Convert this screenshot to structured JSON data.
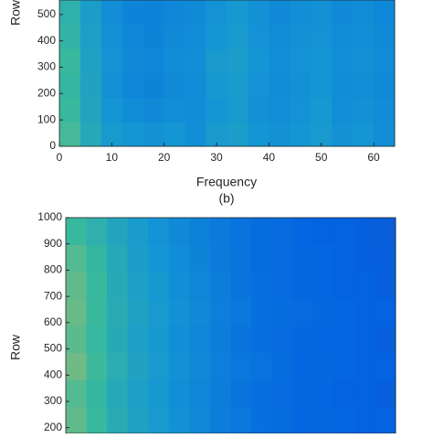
{
  "chart_data": [
    {
      "type": "heatmap",
      "ylabel": "Row",
      "xlabel": "Frequency",
      "caption": "(b)",
      "xlim": [
        0,
        64
      ],
      "xticks": [
        0,
        10,
        20,
        30,
        40,
        50,
        60
      ],
      "ylim": [
        0,
        555
      ],
      "yticks": [
        0,
        100,
        200,
        300,
        400,
        500
      ],
      "zlim": [
        0,
        1
      ],
      "colormap": [
        "#352a87",
        "#0363e1",
        "#1496d4",
        "#38b99e",
        "#c2bc5f",
        "#f9fb0e"
      ],
      "values": [
        [
          0.62,
          0.5,
          0.42,
          0.4,
          0.38,
          0.4,
          0.37,
          0.42,
          0.44,
          0.4,
          0.38,
          0.4,
          0.42,
          0.38,
          0.4,
          0.37
        ],
        [
          0.6,
          0.48,
          0.4,
          0.36,
          0.35,
          0.37,
          0.36,
          0.4,
          0.42,
          0.38,
          0.37,
          0.39,
          0.41,
          0.37,
          0.38,
          0.36
        ],
        [
          0.58,
          0.47,
          0.38,
          0.34,
          0.33,
          0.35,
          0.36,
          0.41,
          0.43,
          0.39,
          0.36,
          0.38,
          0.4,
          0.36,
          0.37,
          0.35
        ],
        [
          0.6,
          0.46,
          0.39,
          0.35,
          0.34,
          0.36,
          0.37,
          0.42,
          0.44,
          0.4,
          0.37,
          0.39,
          0.4,
          0.37,
          0.38,
          0.36
        ],
        [
          0.57,
          0.45,
          0.38,
          0.34,
          0.33,
          0.35,
          0.36,
          0.4,
          0.42,
          0.39,
          0.36,
          0.38,
          0.39,
          0.36,
          0.37,
          0.35
        ],
        [
          0.55,
          0.44,
          0.37,
          0.33,
          0.32,
          0.34,
          0.35,
          0.39,
          0.41,
          0.38,
          0.35,
          0.37,
          0.38,
          0.35,
          0.36,
          0.34
        ]
      ]
    },
    {
      "type": "heatmap",
      "ylabel": "Row",
      "xlim": [
        0,
        64
      ],
      "ylim": [
        178,
        1000
      ],
      "yticks": [
        200,
        300,
        400,
        500,
        600,
        700,
        800,
        900,
        1000
      ],
      "zlim": [
        0,
        1
      ],
      "colormap": [
        "#352a87",
        "#0363e1",
        "#1496d4",
        "#38b99e",
        "#c2bc5f",
        "#f9fb0e"
      ],
      "values": [
        [
          0.66,
          0.6,
          0.52,
          0.46,
          0.42,
          0.38,
          0.35,
          0.3,
          0.28,
          0.25,
          0.24,
          0.22,
          0.22,
          0.21,
          0.2,
          0.2
        ],
        [
          0.64,
          0.58,
          0.5,
          0.45,
          0.41,
          0.37,
          0.34,
          0.3,
          0.27,
          0.25,
          0.23,
          0.22,
          0.21,
          0.2,
          0.2,
          0.19
        ],
        [
          0.68,
          0.61,
          0.53,
          0.47,
          0.42,
          0.38,
          0.35,
          0.31,
          0.28,
          0.26,
          0.24,
          0.22,
          0.22,
          0.21,
          0.2,
          0.2
        ],
        [
          0.65,
          0.59,
          0.51,
          0.45,
          0.41,
          0.37,
          0.34,
          0.3,
          0.27,
          0.25,
          0.23,
          0.22,
          0.21,
          0.21,
          0.2,
          0.19
        ],
        [
          0.67,
          0.6,
          0.52,
          0.46,
          0.42,
          0.38,
          0.35,
          0.31,
          0.28,
          0.25,
          0.24,
          0.23,
          0.22,
          0.21,
          0.2,
          0.2
        ],
        [
          0.66,
          0.6,
          0.51,
          0.45,
          0.41,
          0.37,
          0.34,
          0.3,
          0.27,
          0.25,
          0.23,
          0.22,
          0.21,
          0.2,
          0.2,
          0.19
        ],
        [
          0.64,
          0.58,
          0.5,
          0.44,
          0.4,
          0.36,
          0.33,
          0.29,
          0.27,
          0.24,
          0.23,
          0.22,
          0.21,
          0.2,
          0.19,
          0.19
        ],
        [
          0.6,
          0.55,
          0.48,
          0.43,
          0.39,
          0.35,
          0.32,
          0.29,
          0.26,
          0.24,
          0.23,
          0.21,
          0.2,
          0.2,
          0.19,
          0.18
        ]
      ]
    }
  ]
}
